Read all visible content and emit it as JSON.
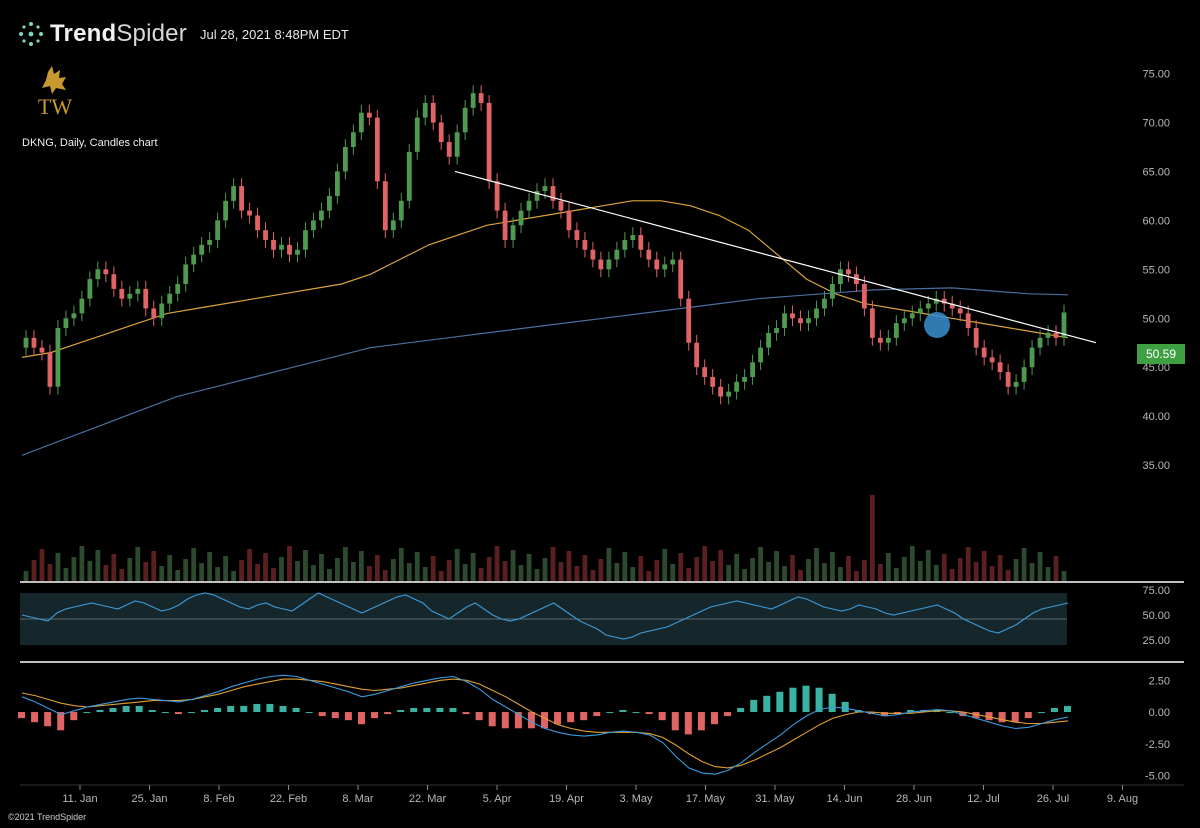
{
  "header": {
    "brand_bold": "Trend",
    "brand_thin": "Spider",
    "timestamp": "Jul 28, 2021 8:48PM EDT"
  },
  "logo": {
    "text": "TW",
    "icon": "bull-icon"
  },
  "chart_title": "DKNG, Daily, Candles chart",
  "last_price": "50.59",
  "copyright": "©2021 TrendSpider",
  "colors": {
    "up": "#4f9a4f",
    "down": "#e06464",
    "sma50": "#d9a43a",
    "sma200": "#4a6ea0",
    "rsi": "#3a9bdc",
    "macd": "#3a9bdc",
    "signal": "#e0a030",
    "trendline": "#ffffff"
  },
  "chart_data": [
    {
      "type": "candlestick",
      "title": "DKNG, Daily, Candles chart",
      "y_ticks": [
        "75.00",
        "70.00",
        "65.00",
        "60.00",
        "55.00",
        "50.00",
        "45.00",
        "40.00",
        "35.00"
      ],
      "ylim": [
        30,
        77
      ],
      "x_ticks": [
        "11. Jan",
        "25. Jan",
        "8. Feb",
        "22. Feb",
        "8. Mar",
        "22. Mar",
        "5. Apr",
        "19. Apr",
        "3. May",
        "17. May",
        "31. May",
        "14. Jun",
        "28. Jun",
        "12. Jul",
        "26. Jul",
        "9. Aug"
      ],
      "close_series": [
        48.0,
        47.0,
        46.5,
        43.0,
        49.0,
        50.0,
        50.5,
        52.0,
        54.0,
        55.0,
        54.5,
        53.0,
        52.0,
        52.5,
        53.0,
        51.0,
        50.0,
        51.5,
        52.5,
        53.5,
        55.5,
        56.5,
        57.5,
        58.0,
        60.0,
        62.0,
        63.5,
        61.0,
        60.5,
        59.0,
        58.0,
        57.0,
        57.5,
        56.5,
        57.0,
        59.0,
        60.0,
        61.0,
        62.5,
        65.0,
        67.5,
        69.0,
        71.0,
        70.5,
        64.0,
        59.0,
        60.0,
        62.0,
        67.0,
        70.5,
        72.0,
        70.0,
        68.0,
        66.5,
        69.0,
        71.5,
        73.0,
        72.0,
        64.0,
        61.0,
        58.0,
        59.5,
        61.0,
        62.0,
        63.0,
        63.5,
        62.0,
        61.0,
        59.0,
        58.0,
        57.0,
        56.0,
        55.0,
        56.0,
        57.0,
        58.0,
        58.5,
        57.0,
        56.0,
        55.0,
        55.5,
        56.0,
        52.0,
        47.5,
        45.0,
        44.0,
        43.0,
        42.0,
        42.5,
        43.5,
        44.0,
        45.5,
        47.0,
        48.5,
        49.0,
        50.5,
        50.0,
        49.5,
        50.0,
        51.0,
        52.0,
        53.5,
        55.0,
        54.5,
        53.5,
        51.0,
        48.0,
        47.5,
        48.0,
        49.5,
        50.0,
        50.5,
        51.0,
        51.5,
        52.0,
        51.5,
        51.0,
        50.5,
        49.0,
        47.0,
        46.0,
        45.5,
        44.5,
        43.0,
        43.5,
        45.0,
        47.0,
        48.0,
        48.5,
        48.0,
        50.59
      ],
      "volume_spike_index": 106,
      "sma50": [
        46.0,
        46.5,
        47.5,
        48.5,
        49.5,
        50.5,
        51.0,
        51.5,
        52.0,
        52.5,
        53.0,
        53.5,
        54.5,
        56.0,
        57.5,
        58.5,
        59.5,
        60.0,
        60.5,
        61.0,
        61.5,
        62.0,
        62.0,
        61.5,
        60.5,
        59.0,
        56.5,
        54.0,
        52.5,
        51.5,
        51.0,
        50.5,
        50.0,
        49.5,
        49.0,
        48.5,
        48.0
      ],
      "sma200": [
        36.0,
        37.5,
        39.0,
        40.5,
        42.0,
        43.0,
        44.0,
        45.0,
        46.0,
        47.0,
        47.5,
        48.0,
        48.5,
        49.0,
        49.5,
        50.0,
        50.5,
        51.0,
        51.5,
        52.0,
        52.3,
        52.6,
        52.9,
        53.0,
        53.1,
        52.8,
        52.5,
        52.4
      ],
      "trendline": {
        "start": [
          65.0,
          "24. Mar"
        ],
        "end": [
          47.5,
          "30. Jul"
        ]
      }
    },
    {
      "type": "line",
      "title": "RSI",
      "y_ticks": [
        "75.00",
        "50.00",
        "25.00"
      ],
      "ylim": [
        20,
        80
      ],
      "values": [
        50,
        48,
        46,
        44,
        52,
        56,
        58,
        60,
        62,
        60,
        58,
        56,
        60,
        64,
        62,
        58,
        54,
        56,
        60,
        66,
        70,
        72,
        70,
        66,
        62,
        58,
        56,
        60,
        62,
        58,
        56,
        54,
        60,
        66,
        72,
        68,
        64,
        60,
        56,
        52,
        56,
        60,
        64,
        68,
        70,
        66,
        62,
        54,
        50,
        46,
        52,
        58,
        62,
        56,
        50,
        46,
        44,
        46,
        50,
        54,
        58,
        62,
        56,
        50,
        44,
        40,
        36,
        30,
        28,
        26,
        28,
        32,
        34,
        36,
        38,
        42,
        46,
        50,
        54,
        58,
        60,
        62,
        64,
        62,
        60,
        58,
        56,
        60,
        64,
        68,
        66,
        62,
        58,
        56,
        54,
        56,
        60,
        58,
        56,
        52,
        50,
        52,
        54,
        56,
        58,
        60,
        56,
        52,
        46,
        42,
        38,
        34,
        32,
        36,
        40,
        46,
        52,
        56,
        58,
        60,
        62
      ]
    },
    {
      "type": "bar+line",
      "title": "MACD",
      "y_ticks": [
        "2.50",
        "0.00",
        "-2.50",
        "-5.00"
      ],
      "ylim": [
        -5.2,
        3.0
      ],
      "macd": [
        1.2,
        0.8,
        0.3,
        -0.2,
        0.1,
        0.4,
        0.6,
        0.8,
        1.0,
        1.1,
        1.0,
        0.9,
        0.8,
        1.0,
        1.3,
        1.6,
        2.0,
        2.3,
        2.6,
        2.8,
        2.9,
        2.8,
        2.5,
        2.2,
        1.9,
        1.6,
        1.2,
        1.4,
        1.7,
        2.0,
        2.3,
        2.5,
        2.7,
        2.8,
        2.4,
        1.8,
        1.0,
        0.4,
        -0.2,
        -0.8,
        -1.3,
        -1.6,
        -1.8,
        -1.9,
        -1.8,
        -1.6,
        -1.5,
        -1.6,
        -1.8,
        -2.4,
        -3.5,
        -4.4,
        -4.8,
        -4.9,
        -4.6,
        -4.0,
        -3.2,
        -2.5,
        -1.8,
        -1.0,
        -0.3,
        0.2,
        0.4,
        0.3,
        0.1,
        -0.1,
        -0.3,
        -0.2,
        0.0,
        0.1,
        0.2,
        0.1,
        -0.2,
        -0.5,
        -0.8,
        -1.1,
        -1.3,
        -1.2,
        -0.9,
        -0.6,
        -0.4
      ],
      "signal": [
        1.5,
        1.3,
        1.0,
        0.7,
        0.5,
        0.4,
        0.5,
        0.6,
        0.7,
        0.8,
        0.9,
        0.9,
        0.9,
        1.0,
        1.2,
        1.4,
        1.7,
        2.0,
        2.2,
        2.4,
        2.6,
        2.6,
        2.5,
        2.4,
        2.2,
        2.0,
        1.8,
        1.7,
        1.8,
        1.9,
        2.1,
        2.3,
        2.5,
        2.6,
        2.5,
        2.2,
        1.7,
        1.2,
        0.6,
        0.0,
        -0.5,
        -1.0,
        -1.3,
        -1.5,
        -1.6,
        -1.6,
        -1.6,
        -1.6,
        -1.7,
        -2.0,
        -2.6,
        -3.3,
        -3.9,
        -4.3,
        -4.4,
        -4.2,
        -3.8,
        -3.3,
        -2.8,
        -2.2,
        -1.6,
        -1.0,
        -0.5,
        -0.2,
        0.0,
        0.0,
        -0.1,
        -0.1,
        -0.1,
        0.0,
        0.1,
        0.1,
        0.0,
        -0.2,
        -0.4,
        -0.6,
        -0.8,
        -0.9,
        -0.9,
        -0.8,
        -0.7
      ]
    }
  ]
}
